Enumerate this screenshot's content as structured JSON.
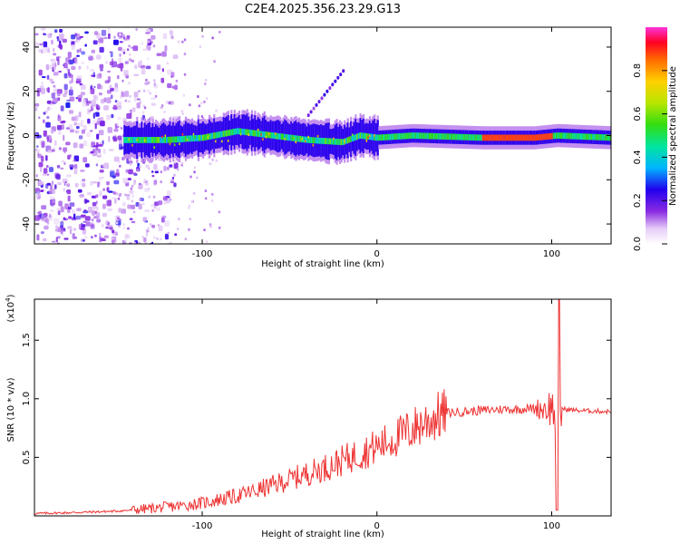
{
  "chart_data": [
    {
      "type": "heatmap",
      "title": "C2E4.2025.356.23.29.G13",
      "xlabel": "Height of straight line (km)",
      "ylabel": "Frequency (Hz)",
      "xlim": [
        -196,
        134
      ],
      "ylim": [
        -49,
        49
      ],
      "x_ticks": [
        -100,
        0,
        100
      ],
      "x_tick_labels": [
        "-100",
        "0",
        "100"
      ],
      "y_ticks": [
        -40,
        -20,
        0,
        20,
        40
      ],
      "y_tick_labels": [
        "-40",
        "-20",
        "0",
        "20",
        "40"
      ],
      "description_of_features": {
        "ridge_center_hz": [
          {
            "x": -140,
            "y": -2
          },
          {
            "x": -120,
            "y": -2
          },
          {
            "x": -100,
            "y": -1
          },
          {
            "x": -80,
            "y": 2
          },
          {
            "x": -60,
            "y": 0
          },
          {
            "x": -40,
            "y": -2
          },
          {
            "x": -20,
            "y": -3
          },
          {
            "x": -10,
            "y": 0
          },
          {
            "x": 0,
            "y": -1
          },
          {
            "x": 20,
            "y": 0
          },
          {
            "x": 60,
            "y": -1
          },
          {
            "x": 90,
            "y": -1
          },
          {
            "x": 103,
            "y": 0
          },
          {
            "x": 134,
            "y": -1
          }
        ],
        "noise_region_x": [
          -196,
          -140
        ],
        "secondary_streak": [
          {
            "x": -40,
            "y": 10
          },
          {
            "x": -20,
            "y": 30
          }
        ]
      },
      "colorbar": {
        "label": "Normalized spectral amplitude",
        "range": [
          0,
          1
        ],
        "ticks": [
          0.0,
          0.2,
          0.4,
          0.6,
          0.8
        ],
        "tick_labels": [
          "0.0",
          "0.2",
          "0.4",
          "0.6",
          "0.8"
        ]
      }
    },
    {
      "type": "line",
      "xlabel": "Height of straight line (km)",
      "ylabel": "SNR (10 * v/v)",
      "y_multiplier_label": "(x10",
      "y_multiplier_exp": "4",
      "xlim": [
        -196,
        134
      ],
      "ylim": [
        0,
        1.85
      ],
      "x_ticks": [
        -100,
        0,
        100
      ],
      "x_tick_labels": [
        "-100",
        "0",
        "100"
      ],
      "y_ticks": [
        0.5,
        1.0,
        1.5
      ],
      "y_tick_labels": [
        "0.5",
        "1.0",
        "1.5"
      ],
      "series": [
        {
          "name": "SNR",
          "color": "#ee3333",
          "x": [
            -196,
            -170,
            -150,
            -140,
            -125,
            -110,
            -100,
            -90,
            -80,
            -70,
            -60,
            -50,
            -40,
            -30,
            -20,
            -10,
            0,
            10,
            20,
            30,
            40,
            50,
            60,
            70,
            80,
            90,
            95,
            100,
            103,
            105,
            108,
            115,
            134
          ],
          "y": [
            0.02,
            0.03,
            0.04,
            0.05,
            0.07,
            0.09,
            0.11,
            0.14,
            0.17,
            0.21,
            0.26,
            0.31,
            0.36,
            0.41,
            0.47,
            0.53,
            0.59,
            0.66,
            0.74,
            0.82,
            0.88,
            0.89,
            0.9,
            0.91,
            0.91,
            0.92,
            0.92,
            0.93,
            0.85,
            0.92,
            0.91,
            0.9,
            0.89
          ]
        }
      ]
    }
  ]
}
